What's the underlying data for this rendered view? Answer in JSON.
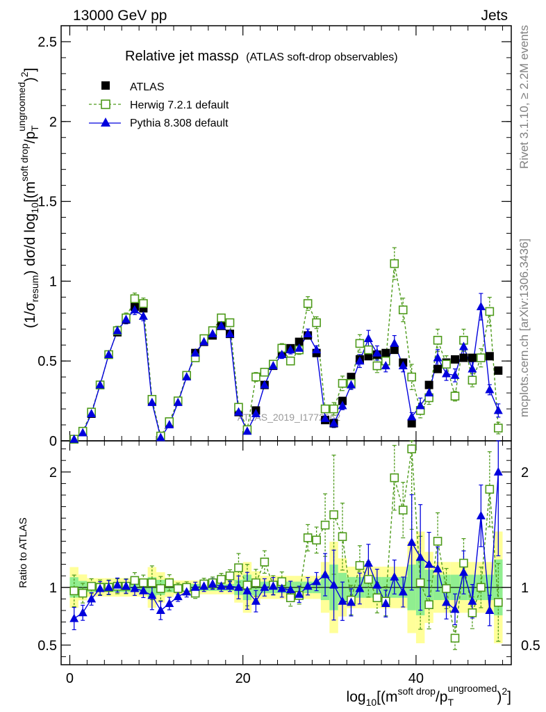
{
  "header": {
    "left": "13000 GeV pp",
    "right": "Jets"
  },
  "side_labels": {
    "rivet": "Rivet 3.1.10, ≥ 2.2M events",
    "mcplots": "mcplots.cern.ch [arXiv:1306.3436]"
  },
  "watermark": "ATLAS_2019_I1772062",
  "colors": {
    "atlas": "#000000",
    "herwig": "#4d9a1a",
    "pythia": "#0000dd",
    "band_yellow": "#ffff99",
    "band_green": "#90ee90"
  },
  "chart_data": [
    {
      "type": "scatter",
      "title_main": "Relative jet massρ",
      "title_sub": "(ATLAS soft-drop observables)",
      "ylabel_parts": {
        "a": "(1/σ",
        "a_sub": "resum",
        "b": ") dσ/d log",
        "b_sub": "10",
        "c": "[(m",
        "c_sup": "soft drop",
        "d": "/p",
        "d_sub": "T",
        "d_sup": "ungroomed",
        "e": ")",
        "e_sup": "2",
        "f": "]"
      },
      "xlim": [
        -1,
        51
      ],
      "ylim": [
        0,
        2.6
      ],
      "yticks": [
        "0",
        "0.5",
        "1",
        "1.5",
        "2",
        "2.5"
      ],
      "legend_position": "top-left",
      "series": [
        {
          "name": "ATLAS",
          "marker": "square-filled",
          "x": [
            0.5,
            1.5,
            2.5,
            3.5,
            4.5,
            5.5,
            6.5,
            7.5,
            8.5,
            9.5,
            10.5,
            11.5,
            12.5,
            13.5,
            14.5,
            15.5,
            16.5,
            17.5,
            18.5,
            19.5,
            20.5,
            21.5,
            22.5,
            23.5,
            24.5,
            25.5,
            26.5,
            27.5,
            28.5,
            29.5,
            30.5,
            31.5,
            32.5,
            33.5,
            34.5,
            35.5,
            36.5,
            37.5,
            38.5,
            39.5,
            40.5,
            41.5,
            42.5,
            43.5,
            44.5,
            45.5,
            46.5,
            47.5,
            48.5,
            49.5
          ],
          "y": [
            0.01,
            0.06,
            0.17,
            0.35,
            0.54,
            0.68,
            0.76,
            0.84,
            0.83,
            0.25,
            0.03,
            0.11,
            0.25,
            0.41,
            0.55,
            0.62,
            0.66,
            0.72,
            0.67,
            0.18,
            0.07,
            0.19,
            0.35,
            0.47,
            0.55,
            0.58,
            0.62,
            0.66,
            0.55,
            0.13,
            0.11,
            0.25,
            0.4,
            0.51,
            0.53,
            0.54,
            0.55,
            0.57,
            0.49,
            0.11,
            0.19,
            0.35,
            0.45,
            0.49,
            0.51,
            0.52,
            0.52,
            0.52,
            0.53,
            0.44
          ]
        },
        {
          "name": "Herwig 7.2.1 default",
          "marker": "square-open",
          "x": [
            0.5,
            1.5,
            2.5,
            3.5,
            4.5,
            5.5,
            6.5,
            7.5,
            8.5,
            9.5,
            10.5,
            11.5,
            12.5,
            13.5,
            14.5,
            15.5,
            16.5,
            17.5,
            18.5,
            19.5,
            20.5,
            21.5,
            22.5,
            23.5,
            24.5,
            25.5,
            26.5,
            27.5,
            28.5,
            29.5,
            30.5,
            31.5,
            32.5,
            33.5,
            34.5,
            35.5,
            36.5,
            37.5,
            38.5,
            39.5,
            40.5,
            41.5,
            42.5,
            43.5,
            44.5,
            45.5,
            46.5,
            47.5,
            48.5,
            49.5
          ],
          "y": [
            0.01,
            0.06,
            0.18,
            0.35,
            0.54,
            0.69,
            0.77,
            0.89,
            0.86,
            0.26,
            0.03,
            0.12,
            0.25,
            0.41,
            0.52,
            0.64,
            0.69,
            0.77,
            0.74,
            0.21,
            0.07,
            0.4,
            0.43,
            0.48,
            0.58,
            0.5,
            0.57,
            0.86,
            0.74,
            0.2,
            0.2,
            0.36,
            0.36,
            0.61,
            0.57,
            0.47,
            0.5,
            1.11,
            0.82,
            0.4,
            0.19,
            0.27,
            0.63,
            0.48,
            0.28,
            0.63,
            0.38,
            0.52,
            0.81,
            0.08
          ]
        },
        {
          "name": "Pythia 8.308 default",
          "marker": "triangle-filled",
          "x": [
            0.5,
            1.5,
            2.5,
            3.5,
            4.5,
            5.5,
            6.5,
            7.5,
            8.5,
            9.5,
            10.5,
            11.5,
            12.5,
            13.5,
            14.5,
            15.5,
            16.5,
            17.5,
            18.5,
            19.5,
            20.5,
            21.5,
            22.5,
            23.5,
            24.5,
            25.5,
            26.5,
            27.5,
            28.5,
            29.5,
            30.5,
            31.5,
            32.5,
            33.5,
            34.5,
            35.5,
            36.5,
            37.5,
            38.5,
            39.5,
            40.5,
            41.5,
            42.5,
            43.5,
            44.5,
            45.5,
            46.5,
            47.5,
            48.5,
            49.5
          ],
          "y": [
            0.01,
            0.05,
            0.17,
            0.35,
            0.54,
            0.69,
            0.76,
            0.82,
            0.78,
            0.24,
            0.02,
            0.1,
            0.24,
            0.4,
            0.55,
            0.62,
            0.67,
            0.72,
            0.67,
            0.18,
            0.06,
            0.17,
            0.35,
            0.47,
            0.54,
            0.57,
            0.58,
            0.67,
            0.57,
            0.14,
            0.11,
            0.22,
            0.35,
            0.5,
            0.64,
            0.55,
            0.47,
            0.61,
            0.47,
            0.15,
            0.22,
            0.3,
            0.52,
            0.42,
            0.41,
            0.59,
            0.45,
            0.84,
            0.32,
            0.19
          ]
        }
      ]
    },
    {
      "type": "scatter",
      "ylabel": "Ratio to ATLAS",
      "xlabel_parts": {
        "a": "log",
        "a_sub": "10",
        "b": "[(m",
        "b_sup": "soft drop",
        "c": "/p",
        "c_sub": "T",
        "c_sup": "ungroomed",
        "d": ")",
        "d_sup": "2",
        "e": "]"
      },
      "xlim": [
        -1,
        51
      ],
      "ylim": [
        0.33,
        2.27
      ],
      "yticks": [
        "0.5",
        "1",
        "2"
      ],
      "xticks": [
        "0",
        "20",
        "40"
      ],
      "series": [
        {
          "name": "Herwig 7.2.1 default",
          "x": [
            0.5,
            1.5,
            2.5,
            3.5,
            4.5,
            5.5,
            6.5,
            7.5,
            8.5,
            9.5,
            10.5,
            11.5,
            12.5,
            13.5,
            14.5,
            15.5,
            16.5,
            17.5,
            18.5,
            19.5,
            20.5,
            21.5,
            22.5,
            23.5,
            24.5,
            25.5,
            26.5,
            27.5,
            28.5,
            29.5,
            30.5,
            31.5,
            32.5,
            33.5,
            34.5,
            35.5,
            36.5,
            37.5,
            38.5,
            39.5,
            40.5,
            41.5,
            42.5,
            43.5,
            44.5,
            45.5,
            46.5,
            47.5,
            48.5,
            49.5
          ],
          "y": [
            0.97,
            0.95,
            1.01,
            1.0,
            1.0,
            1.01,
            1.01,
            1.06,
            1.04,
            1.04,
            0.99,
            1.04,
            0.99,
            1.0,
            0.95,
            1.03,
            1.04,
            1.07,
            1.1,
            1.17,
            1.02,
            1.04,
            1.22,
            1.02,
            1.05,
            0.91,
            0.93,
            1.43,
            1.41,
            1.54,
            1.63,
            1.44,
            0.89,
            1.19,
            1.07,
            0.91,
            0.88,
            1.95,
            1.67,
            2.2,
            1.04,
            0.85,
            1.4,
            0.99,
            0.56,
            1.21,
            0.78,
            1.0,
            1.85,
            0.87
          ]
        },
        {
          "name": "Pythia 8.308 default",
          "x": [
            0.5,
            1.5,
            2.5,
            3.5,
            4.5,
            5.5,
            6.5,
            7.5,
            8.5,
            9.5,
            10.5,
            11.5,
            12.5,
            13.5,
            14.5,
            15.5,
            16.5,
            17.5,
            18.5,
            19.5,
            20.5,
            21.5,
            22.5,
            23.5,
            24.5,
            25.5,
            26.5,
            27.5,
            28.5,
            29.5,
            30.5,
            31.5,
            32.5,
            33.5,
            34.5,
            35.5,
            36.5,
            37.5,
            38.5,
            39.5,
            40.5,
            41.5,
            42.5,
            43.5,
            44.5,
            45.5,
            46.5,
            47.5,
            48.5,
            49.5
          ],
          "y": [
            0.73,
            0.78,
            0.9,
            0.99,
            1.0,
            1.02,
            1.01,
            0.99,
            0.97,
            0.93,
            0.8,
            0.86,
            0.92,
            0.96,
            1.0,
            1.01,
            1.03,
            1.01,
            1.01,
            1.0,
            0.97,
            0.88,
            1.0,
            1.01,
            0.99,
            0.98,
            0.94,
            1.01,
            1.05,
            1.11,
            1.02,
            0.88,
            0.87,
            0.99,
            1.21,
            1.02,
            0.86,
            1.09,
            0.96,
            1.39,
            1.26,
            1.2,
            1.16,
            0.87,
            0.81,
            1.13,
            0.88,
            1.62,
            0.8,
            2.0
          ]
        }
      ]
    }
  ]
}
